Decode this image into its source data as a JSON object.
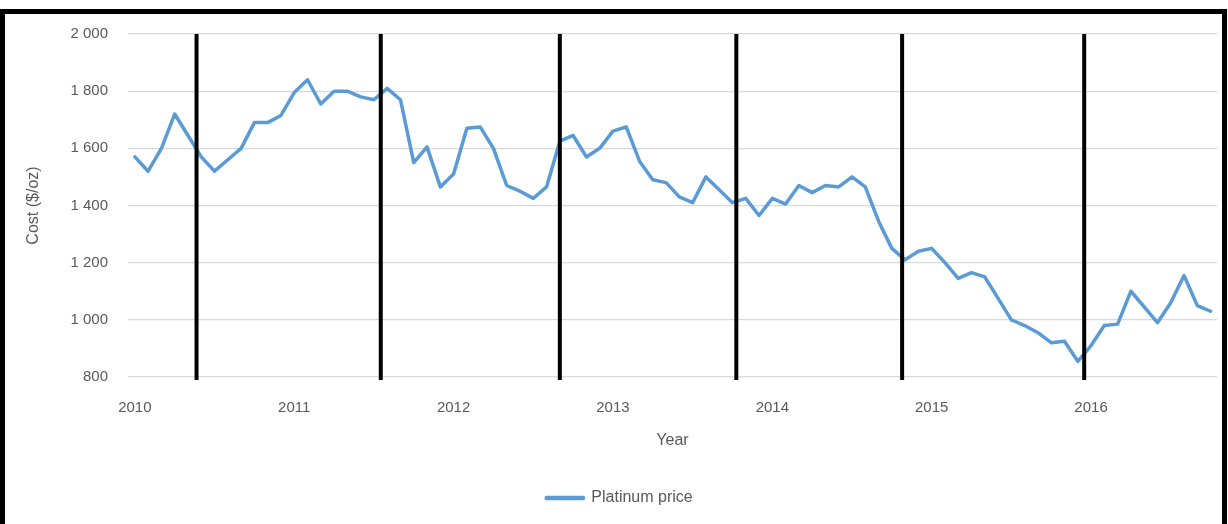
{
  "chart_data": {
    "type": "line",
    "xlabel": "Year",
    "ylabel": "Cost ($/oz)",
    "x": [
      "2010-01",
      "2010-02",
      "2010-03",
      "2010-04",
      "2010-05",
      "2010-06",
      "2010-07",
      "2010-08",
      "2010-09",
      "2010-10",
      "2010-11",
      "2010-12",
      "2011-01",
      "2011-02",
      "2011-03",
      "2011-04",
      "2011-05",
      "2011-06",
      "2011-07",
      "2011-08",
      "2011-09",
      "2011-10",
      "2011-11",
      "2011-12",
      "2012-01",
      "2012-02",
      "2012-03",
      "2012-04",
      "2012-05",
      "2012-06",
      "2012-07",
      "2012-08",
      "2012-09",
      "2012-10",
      "2012-11",
      "2012-12",
      "2013-01",
      "2013-02",
      "2013-03",
      "2013-04",
      "2013-05",
      "2013-06",
      "2013-07",
      "2013-08",
      "2013-09",
      "2013-10",
      "2013-11",
      "2013-12",
      "2014-01",
      "2014-02",
      "2014-03",
      "2014-04",
      "2014-05",
      "2014-06",
      "2014-07",
      "2014-08",
      "2014-09",
      "2014-10",
      "2014-11",
      "2014-12",
      "2015-01",
      "2015-02",
      "2015-03",
      "2015-04",
      "2015-05",
      "2015-06",
      "2015-07",
      "2015-08",
      "2015-09",
      "2015-10",
      "2015-11",
      "2015-12",
      "2016-01",
      "2016-02",
      "2016-03",
      "2016-04",
      "2016-05",
      "2016-06",
      "2016-07",
      "2016-08",
      "2016-09",
      "2016-10"
    ],
    "series": [
      {
        "name": "Platinum price",
        "color": "#5b9bd5",
        "values": [
          1570,
          1520,
          1600,
          1720,
          1645,
          1570,
          1520,
          1560,
          1600,
          1690,
          1690,
          1715,
          1795,
          1840,
          1755,
          1800,
          1800,
          1780,
          1770,
          1810,
          1770,
          1550,
          1605,
          1465,
          1510,
          1670,
          1675,
          1600,
          1470,
          1450,
          1425,
          1465,
          1625,
          1645,
          1570,
          1600,
          1660,
          1675,
          1555,
          1490,
          1480,
          1430,
          1410,
          1500,
          1455,
          1410,
          1425,
          1365,
          1425,
          1405,
          1470,
          1445,
          1470,
          1465,
          1500,
          1465,
          1345,
          1250,
          1210,
          1240,
          1250,
          1200,
          1145,
          1165,
          1150,
          1075,
          1000,
          980,
          955,
          920,
          925,
          855,
          910,
          980,
          985,
          1100,
          1045,
          990,
          1060,
          1155,
          1050,
          1030
        ]
      }
    ],
    "xlim": [
      "2009-12-16",
      "2016-10-16"
    ],
    "xticks": [
      "2010",
      "2011",
      "2012",
      "2013",
      "2014",
      "2015",
      "2016"
    ],
    "ylim": [
      800,
      2000
    ],
    "yticks": [
      800,
      {
        "value": 1000,
        "label": "1 000"
      },
      {
        "value": 1200,
        "label": "1 200"
      },
      {
        "value": 1400,
        "label": "1 400"
      },
      {
        "value": 1600,
        "label": "1 600"
      },
      {
        "value": 1800,
        "label": "1 800"
      },
      {
        "value": 2000,
        "label": "2 000"
      }
    ],
    "ref_lines": [
      {
        "axis": "x",
        "value": "2010-05-21",
        "color": "#000000"
      },
      {
        "axis": "x",
        "value": "2011-07-17",
        "color": "#000000"
      },
      {
        "axis": "x",
        "value": "2012-09-01",
        "color": "#000000"
      },
      {
        "axis": "x",
        "value": "2013-10-10",
        "color": "#000000"
      },
      {
        "axis": "x",
        "value": "2014-10-25",
        "color": "#000000"
      },
      {
        "axis": "x",
        "value": "2015-12-16",
        "color": "#000000"
      }
    ],
    "grid": "y",
    "legend": "bottom",
    "marker": "none",
    "line_style": "solid"
  }
}
